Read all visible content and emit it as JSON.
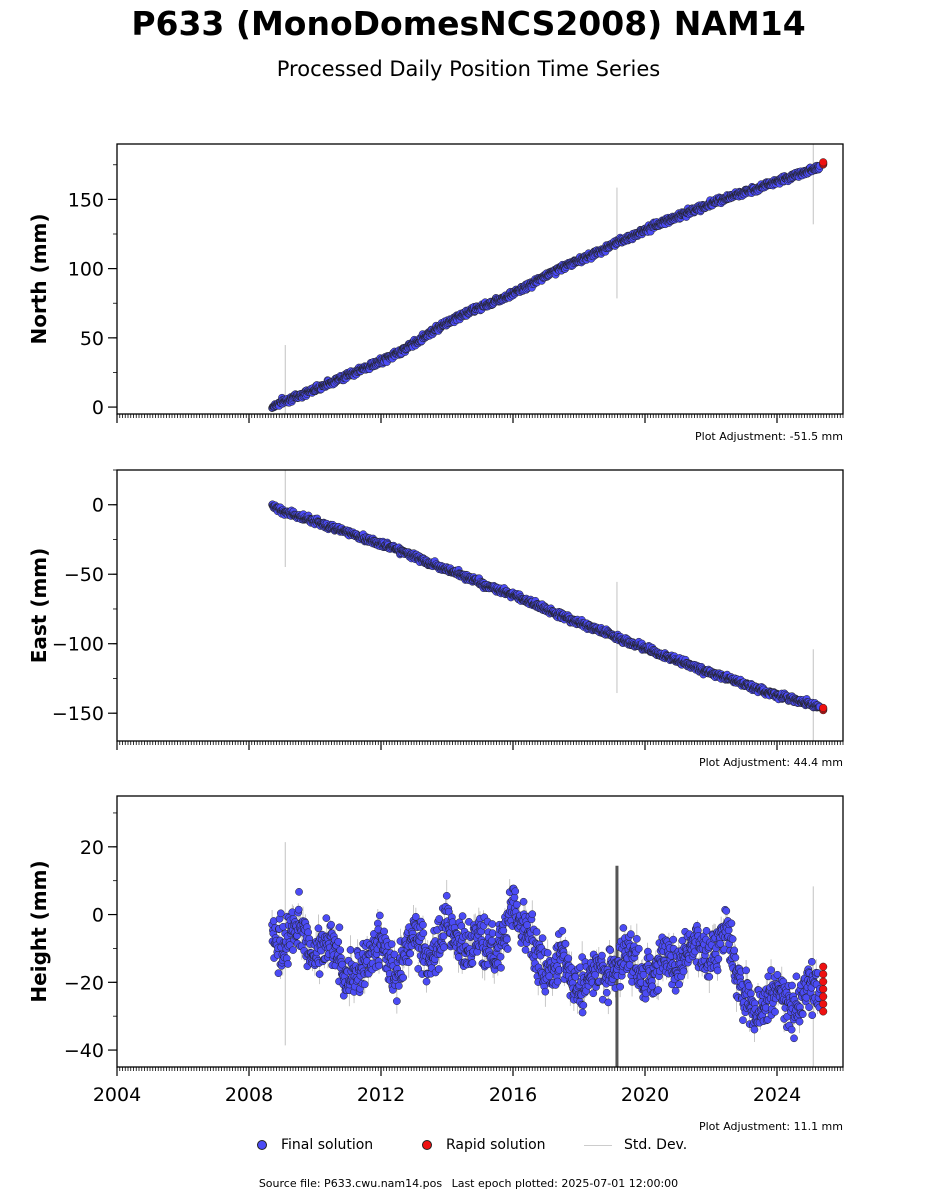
{
  "header": {
    "title": "P633 (MonoDomesNCS2008) NAM14",
    "subtitle": "Processed Daily Position Time Series"
  },
  "legend": {
    "final_label": "Final solution",
    "rapid_label": "Rapid solution",
    "std_label": "Std. Dev."
  },
  "footer": {
    "source": "Source file: P633.cwu.nam14.pos",
    "last_epoch": "Last epoch plotted: 2025-07-01 12:00:00"
  },
  "colors": {
    "final": "#4b4bf5",
    "rapid": "#ee1111",
    "std": "#bbbbbb",
    "edge": "#222222"
  },
  "chart_data": [
    {
      "type": "scatter",
      "ylabel": "North (mm)",
      "adjustment": "Plot Adjustment: -51.5 mm",
      "xlim": [
        2004.0,
        2026.0
      ],
      "ylim": [
        -5,
        190
      ],
      "yticks": [
        0,
        50,
        100,
        150
      ],
      "ytick_labels": [
        "0",
        "50",
        "100",
        "150"
      ],
      "xticks": [
        2004,
        2008,
        2012,
        2016,
        2020,
        2024
      ],
      "xtick_labels": [],
      "grid": false,
      "series": [
        {
          "kind": "final",
          "x": [
            2008.7,
            2009.0,
            2009.5,
            2010.0,
            2010.5,
            2011.0,
            2011.5,
            2012.0,
            2012.5,
            2013.0,
            2013.5,
            2014.0,
            2014.5,
            2015.0,
            2015.5,
            2016.0,
            2016.5,
            2017.0,
            2017.5,
            2018.0,
            2018.5,
            2019.0,
            2019.5,
            2020.0,
            2020.5,
            2021.0,
            2021.5,
            2022.0,
            2022.5,
            2023.0,
            2023.5,
            2024.0,
            2024.5,
            2025.0,
            2025.3
          ],
          "y": [
            0,
            4,
            8,
            13,
            18,
            23,
            28,
            33,
            39,
            46,
            54,
            61,
            67,
            72,
            77,
            82,
            88,
            95,
            101,
            106,
            111,
            117,
            122,
            128,
            133,
            138,
            142,
            147,
            151,
            155,
            159,
            163,
            167,
            171,
            174
          ]
        },
        {
          "kind": "rapid",
          "x": [
            2025.4
          ],
          "y": [
            176
          ]
        }
      ]
    },
    {
      "type": "scatter",
      "ylabel": "East (mm)",
      "adjustment": "Plot Adjustment: 44.4 mm",
      "xlim": [
        2004.0,
        2026.0
      ],
      "ylim": [
        -170,
        25
      ],
      "yticks": [
        0,
        -50,
        -100,
        -150
      ],
      "ytick_labels": [
        "0",
        "−50",
        "−100",
        "−150"
      ],
      "xticks": [
        2004,
        2008,
        2012,
        2016,
        2020,
        2024
      ],
      "xtick_labels": [],
      "grid": false,
      "series": [
        {
          "kind": "final",
          "x": [
            2008.7,
            2009.0,
            2009.5,
            2010.0,
            2010.5,
            2011.0,
            2011.5,
            2012.0,
            2012.5,
            2013.0,
            2013.5,
            2014.0,
            2014.5,
            2015.0,
            2015.5,
            2016.0,
            2016.5,
            2017.0,
            2017.5,
            2018.0,
            2018.5,
            2019.0,
            2019.5,
            2020.0,
            2020.5,
            2021.0,
            2021.5,
            2022.0,
            2022.5,
            2023.0,
            2023.5,
            2024.0,
            2024.5,
            2025.0,
            2025.3
          ],
          "y": [
            -1,
            -4,
            -8,
            -12,
            -16,
            -20,
            -24,
            -28,
            -32,
            -37,
            -42,
            -47,
            -51,
            -56,
            -61,
            -65,
            -70,
            -75,
            -80,
            -85,
            -89,
            -94,
            -99,
            -103,
            -108,
            -112,
            -117,
            -121,
            -125,
            -129,
            -133,
            -137,
            -140,
            -143,
            -146
          ]
        },
        {
          "kind": "rapid",
          "x": [
            2025.4
          ],
          "y": [
            -147
          ]
        }
      ]
    },
    {
      "type": "scatter",
      "ylabel": "Height (mm)",
      "adjustment": "Plot Adjustment: 11.1 mm",
      "xlim": [
        2004.0,
        2026.0
      ],
      "ylim": [
        -45,
        35
      ],
      "yticks": [
        20,
        0,
        -20,
        -40
      ],
      "ytick_labels": [
        "20",
        "0",
        "−20",
        "−40"
      ],
      "xticks": [
        2004,
        2008,
        2012,
        2016,
        2020,
        2024
      ],
      "xtick_labels": [
        "2004",
        "2008",
        "2012",
        "2016",
        "2020",
        "2024"
      ],
      "grid": false,
      "series": [
        {
          "kind": "final",
          "x": [
            2008.7,
            2009.0,
            2009.5,
            2010.0,
            2010.5,
            2011.0,
            2011.5,
            2012.0,
            2012.5,
            2013.0,
            2013.5,
            2014.0,
            2014.5,
            2015.0,
            2015.5,
            2016.0,
            2016.5,
            2017.0,
            2017.5,
            2018.0,
            2018.5,
            2019.0,
            2019.5,
            2020.0,
            2020.5,
            2021.0,
            2021.5,
            2022.0,
            2022.5,
            2023.0,
            2023.5,
            2024.0,
            2024.5,
            2025.0,
            2025.3
          ],
          "y": [
            -5,
            -10,
            -3,
            -12,
            -8,
            -20,
            -15,
            -8,
            -18,
            -5,
            -14,
            -2,
            -10,
            -6,
            -12,
            2,
            -6,
            -18,
            -12,
            -22,
            -15,
            -18,
            -10,
            -20,
            -12,
            -15,
            -8,
            -12,
            -5,
            -25,
            -30,
            -22,
            -28,
            -20,
            -25
          ]
        },
        {
          "kind": "rapid",
          "x": [
            2025.4
          ],
          "y": [
            -22
          ]
        }
      ]
    }
  ]
}
